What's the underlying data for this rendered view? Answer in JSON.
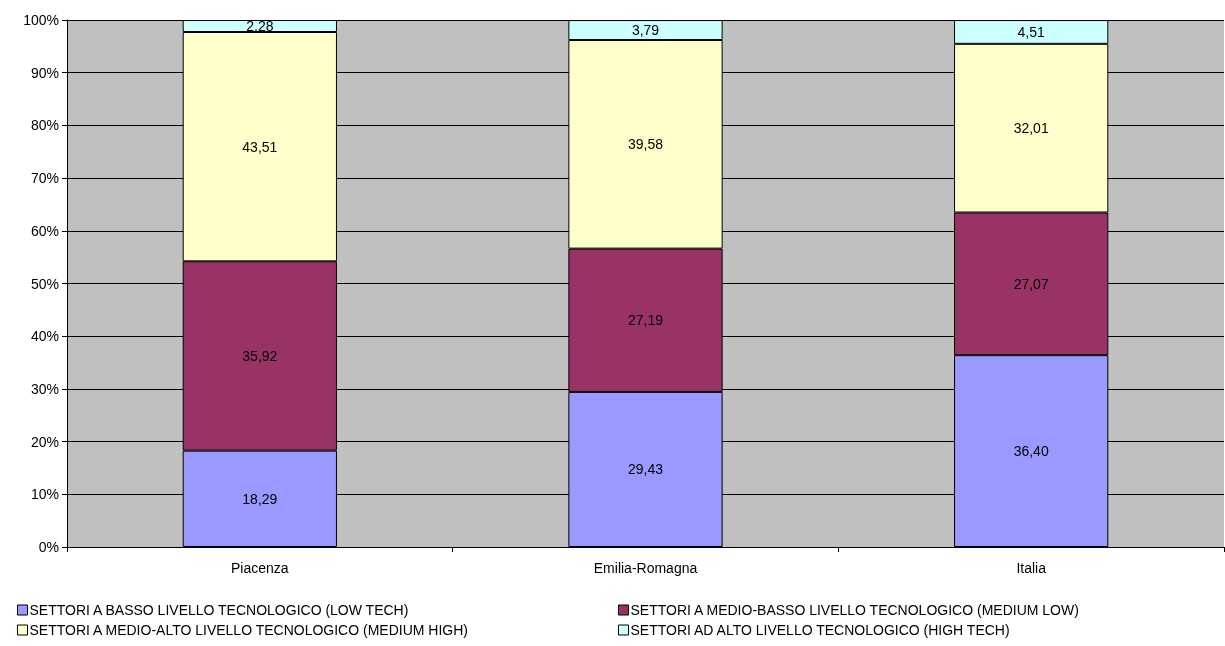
{
  "chart_data": {
    "type": "bar",
    "stacked": true,
    "categories": [
      "Piacenza",
      "Emilia-Romagna",
      "Italia"
    ],
    "series": [
      {
        "name": "SETTORI A BASSO LIVELLO TECNOLOGICO (LOW TECH)",
        "color": "#9999ff",
        "values": [
          18.29,
          29.43,
          36.4
        ],
        "value_labels": [
          "18,29",
          "29,43",
          "36,40"
        ]
      },
      {
        "name": "SETTORI A MEDIO-BASSO LIVELLO TECNOLOGICO (MEDIUM LOW)",
        "color": "#993366",
        "values": [
          35.92,
          27.19,
          27.07
        ],
        "value_labels": [
          "35,92",
          "27,19",
          "27,07"
        ]
      },
      {
        "name": "SETTORI A MEDIO-ALTO LIVELLO TECNOLOGICO (MEDIUM HIGH)",
        "color": "#ffffcc",
        "values": [
          43.51,
          39.58,
          32.01
        ],
        "value_labels": [
          "43,51",
          "39,58",
          "32,01"
        ]
      },
      {
        "name": "SETTORI AD ALTO LIVELLO TECNOLOGICO (HIGH TECH)",
        "color": "#ccffff",
        "values": [
          2.28,
          3.79,
          4.51
        ],
        "value_labels": [
          "2,28",
          "3,79",
          "4,51"
        ]
      }
    ],
    "ylim": [
      0,
      100
    ],
    "yticks": [
      {
        "value": 0,
        "label": "0%"
      },
      {
        "value": 10,
        "label": "10%"
      },
      {
        "value": 20,
        "label": "20%"
      },
      {
        "value": 30,
        "label": "30%"
      },
      {
        "value": 40,
        "label": "40%"
      },
      {
        "value": 50,
        "label": "50%"
      },
      {
        "value": 60,
        "label": "60%"
      },
      {
        "value": 70,
        "label": "70%"
      },
      {
        "value": 80,
        "label": "80%"
      },
      {
        "value": 90,
        "label": "90%"
      },
      {
        "value": 100,
        "label": "100%"
      }
    ],
    "grid": "y",
    "legend": "bottom"
  }
}
